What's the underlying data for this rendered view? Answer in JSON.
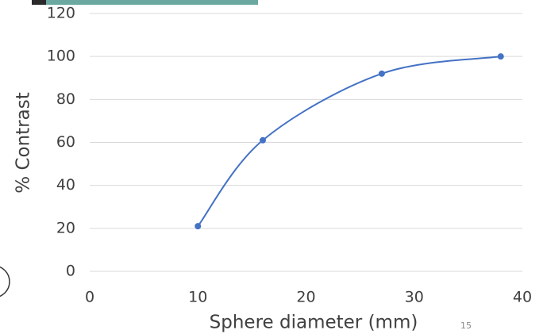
{
  "chart_data": {
    "type": "scatter-smooth",
    "x_label": "Sphere diameter (mm)",
    "y_label": "% Contrast",
    "page_number": "15",
    "series": [
      {
        "name": "% Contrast",
        "color": "#4472c4",
        "x": [
          10,
          16,
          27,
          38
        ],
        "values": [
          21,
          61,
          92,
          100
        ]
      }
    ],
    "xlim": [
      0,
      40
    ],
    "xticks": [
      0,
      10,
      20,
      30,
      40
    ],
    "ylim": [
      0,
      120
    ],
    "yticks": [
      0,
      20,
      40,
      60,
      80,
      100,
      120
    ],
    "grid": true
  }
}
